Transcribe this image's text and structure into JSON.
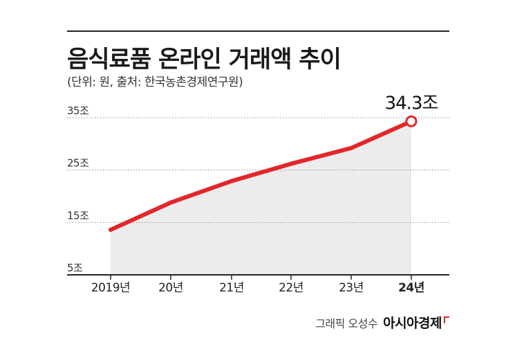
{
  "header": {
    "title": "음식료품 온라인 거래액 추이",
    "subtitle": "(단위: 원, 출처: 한국농촌경제연구원)"
  },
  "footer": {
    "credit": "그래픽 오성수",
    "brand": "아시아경제"
  },
  "colors": {
    "line": "#e3262b",
    "area": "#ececec",
    "grid": "#888888",
    "text": "#222222"
  },
  "chart_data": {
    "type": "area",
    "title": "음식료품 온라인 거래액 추이",
    "xlabel": "",
    "ylabel": "",
    "categories": [
      "2019년",
      "20년",
      "21년",
      "22년",
      "23년",
      "24년"
    ],
    "series": [
      {
        "name": "",
        "values": [
          13.6,
          18.8,
          22.9,
          26.2,
          29.2,
          34.3
        ]
      }
    ],
    "ylim": [
      5,
      35
    ],
    "yticks": [
      5,
      15,
      25,
      35
    ],
    "ytick_labels": [
      "5조",
      "15조",
      "25조",
      "35조"
    ],
    "grid": true,
    "annotations": [
      {
        "category": "24년",
        "value": 34.3,
        "label": "34.3조"
      }
    ]
  }
}
